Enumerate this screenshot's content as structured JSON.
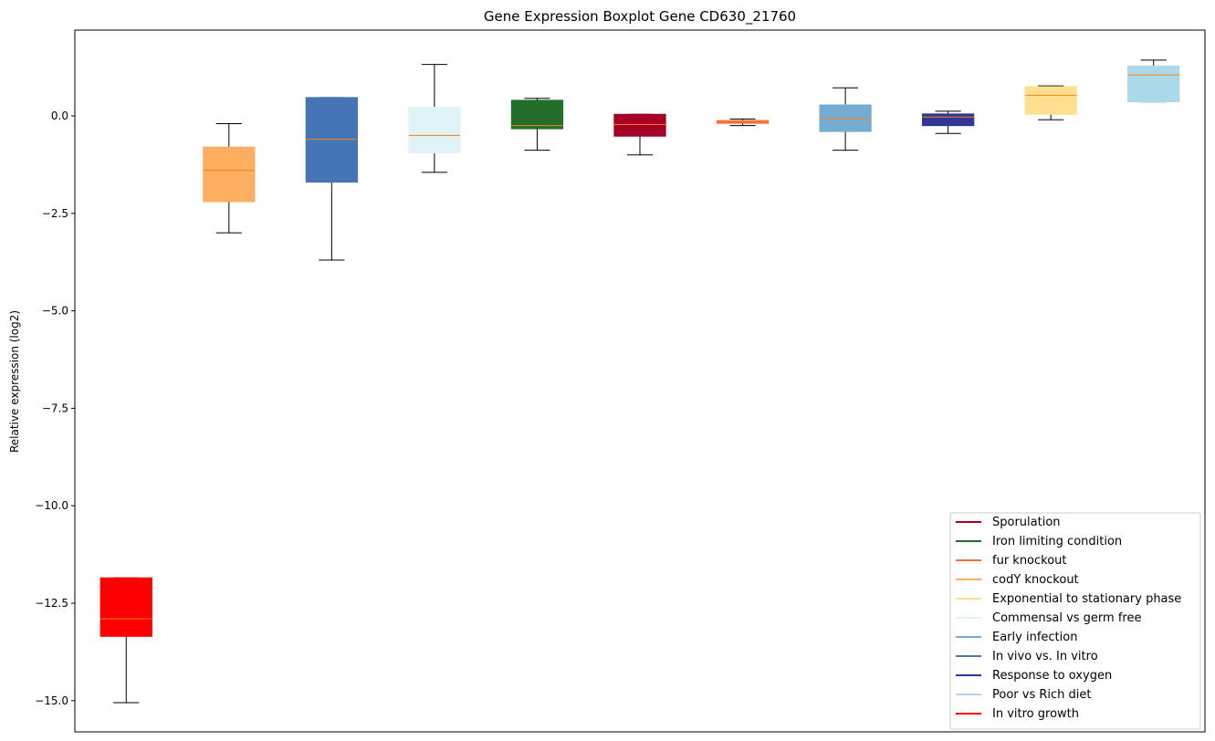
{
  "chart_data": {
    "type": "boxplot",
    "title": "Gene Expression Boxplot Gene CD630_21760",
    "xlabel": "",
    "ylabel": "Relative expression (log2)",
    "ylim": [
      -15.8,
      2.2
    ],
    "yticks": [
      -15.0,
      -12.5,
      -10.0,
      -7.5,
      -5.0,
      -2.5,
      0.0
    ],
    "ytick_labels": [
      "−15.0",
      "−12.5",
      "−10.0",
      "−7.5",
      "−5.0",
      "−2.5",
      "0.0"
    ],
    "grid": false,
    "legend_position": "lower right",
    "boxes": [
      {
        "name": "In vitro growth",
        "color": "#ff0000",
        "whisker_low": -15.05,
        "q1": -13.35,
        "median": -12.9,
        "q3": -11.85,
        "whisker_high": -11.85
      },
      {
        "name": "codY knockout",
        "color": "#fdae61",
        "whisker_low": -3.0,
        "q1": -2.2,
        "median": -1.4,
        "q3": -0.8,
        "whisker_high": -0.2
      },
      {
        "name": "In vivo vs. In vitro",
        "color": "#4575b4",
        "whisker_low": -3.7,
        "q1": -1.7,
        "median": -0.6,
        "q3": 0.47,
        "whisker_high": 0.47
      },
      {
        "name": "Commensal vs germ free",
        "color": "#e0f3f8",
        "whisker_low": -1.45,
        "q1": -0.95,
        "median": -0.5,
        "q3": 0.22,
        "whisker_high": 1.32
      },
      {
        "name": "Iron limiting condition",
        "color": "#226f2c",
        "whisker_low": -0.88,
        "q1": -0.33,
        "median": -0.25,
        "q3": 0.4,
        "whisker_high": 0.45
      },
      {
        "name": "Sporulation",
        "color": "#a50026",
        "whisker_low": -1.0,
        "q1": -0.52,
        "median": -0.22,
        "q3": 0.04,
        "whisker_high": 0.04
      },
      {
        "name": "fur knockout",
        "color": "#f46d43",
        "whisker_low": -0.25,
        "q1": -0.19,
        "median": -0.15,
        "q3": -0.12,
        "whisker_high": -0.08
      },
      {
        "name": "Early infection",
        "color": "#74add1",
        "whisker_low": -0.88,
        "q1": -0.4,
        "median": -0.07,
        "q3": 0.28,
        "whisker_high": 0.72
      },
      {
        "name": "Response to oxygen",
        "color": "#313695",
        "whisker_low": -0.45,
        "q1": -0.25,
        "median": -0.03,
        "q3": 0.05,
        "whisker_high": 0.12
      },
      {
        "name": "Exponential to stationary phase",
        "color": "#fee090",
        "whisker_low": -0.1,
        "q1": 0.04,
        "median": 0.53,
        "q3": 0.75,
        "whisker_high": 0.77
      },
      {
        "name": "Poor vs Rich diet",
        "color": "#abd9e9",
        "whisker_low": 0.36,
        "q1": 0.36,
        "median": 1.05,
        "q3": 1.28,
        "whisker_high": 1.43
      }
    ],
    "median_color": "#ff7f0e",
    "legend": [
      {
        "label": "Sporulation",
        "color": "#a50026"
      },
      {
        "label": "Iron limiting condition",
        "color": "#226f2c"
      },
      {
        "label": "fur knockout",
        "color": "#f46d43"
      },
      {
        "label": "codY knockout",
        "color": "#fdae61"
      },
      {
        "label": "Exponential to stationary phase",
        "color": "#fee090"
      },
      {
        "label": "Commensal vs germ free",
        "color": "#e0f3f8"
      },
      {
        "label": "Early infection",
        "color": "#74add1"
      },
      {
        "label": "In vivo vs. In vitro",
        "color": "#4575b4"
      },
      {
        "label": "Response to oxygen",
        "color": "#313695"
      },
      {
        "label": "Poor vs Rich diet",
        "color": "#abd9e9"
      },
      {
        "label": "In vitro growth",
        "color": "#ff0000"
      }
    ]
  }
}
